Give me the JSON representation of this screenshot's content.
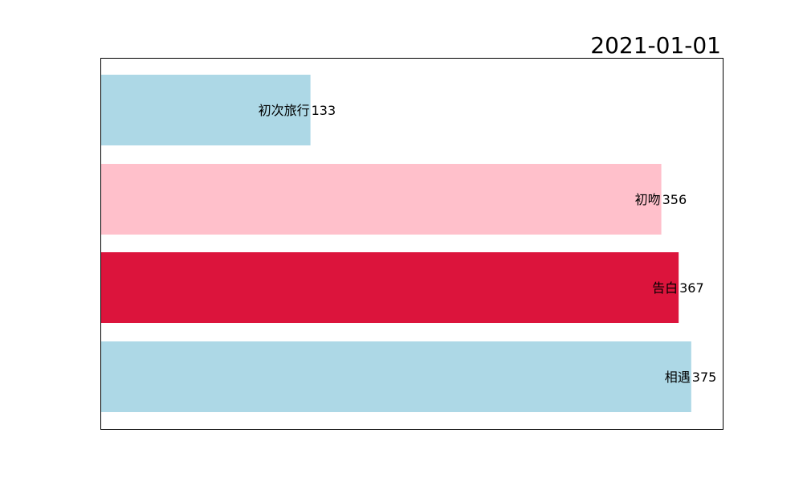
{
  "chart_data": {
    "type": "bar",
    "orientation": "horizontal",
    "title": "2021-01-01",
    "categories": [
      "初次旅行",
      "初吻",
      "告白",
      "相遇"
    ],
    "values": [
      133,
      356,
      367,
      375
    ],
    "colors": [
      "#add8e6",
      "#ffc0cb",
      "#dc143c",
      "#add8e6"
    ],
    "xlim": [
      0,
      395
    ],
    "xlabel": "",
    "ylabel": "",
    "grid": false,
    "axes_ticks_visible": false
  }
}
